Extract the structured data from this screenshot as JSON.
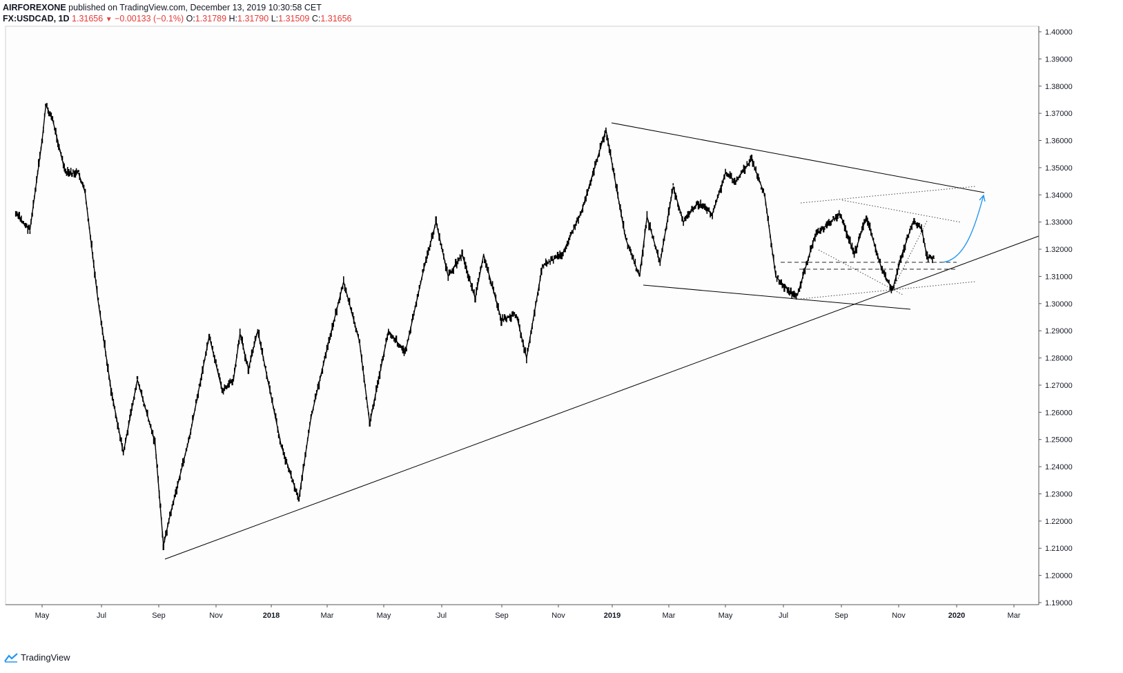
{
  "header": {
    "author": "AIRFOREXONE",
    "published": "published on TradingView.com, December 13, 2019 10:30:58 CET",
    "symbol": "FX:USDCAD, 1D",
    "last": "1.31656",
    "change": "−0.00133 (−0.1%)",
    "o_label": "O:",
    "o_value": "1.31789",
    "h_label": "H:",
    "h_value": "1.31790",
    "l_label": "L:",
    "l_value": "1.31509",
    "c_label": "C:",
    "c_value": "1.31656"
  },
  "footer": {
    "brand": "TradingView"
  },
  "colors": {
    "candle": "#000000",
    "projection": "#2196f3",
    "background": "#fdfdfd",
    "text_red": "#e53935"
  },
  "chart_data": {
    "type": "line",
    "title": "",
    "symbol": "USDCAD",
    "interval": "1D",
    "xlabel": "",
    "ylabel": "",
    "ylim": [
      1.19,
      1.4
    ],
    "y_axis_position": "right",
    "y_ticks": [
      "1.40000",
      "1.39000",
      "1.38000",
      "1.37000",
      "1.36000",
      "1.35000",
      "1.34000",
      "1.33000",
      "1.32000",
      "1.31000",
      "1.30000",
      "1.29000",
      "1.28000",
      "1.27000",
      "1.26000",
      "1.25000",
      "1.24000",
      "1.23000",
      "1.22000",
      "1.21000",
      "1.20000",
      "1.19000"
    ],
    "x_ticks": [
      {
        "label": "May",
        "year": false
      },
      {
        "label": "Jul",
        "year": false
      },
      {
        "label": "Sep",
        "year": false
      },
      {
        "label": "Nov",
        "year": false
      },
      {
        "label": "2018",
        "year": true
      },
      {
        "label": "Mar",
        "year": false
      },
      {
        "label": "May",
        "year": false
      },
      {
        "label": "Jul",
        "year": false
      },
      {
        "label": "Sep",
        "year": false
      },
      {
        "label": "Nov",
        "year": false
      },
      {
        "label": "2019",
        "year": true
      },
      {
        "label": "Mar",
        "year": false
      },
      {
        "label": "May",
        "year": false
      },
      {
        "label": "Jul",
        "year": false
      },
      {
        "label": "Sep",
        "year": false
      },
      {
        "label": "Nov",
        "year": false
      },
      {
        "label": "2020",
        "year": true
      },
      {
        "label": "Mar",
        "year": false
      }
    ],
    "series": [
      {
        "values": [
          {
            "x": "2017-04-03",
            "y": 1.333
          },
          {
            "x": "2017-04-18",
            "y": 1.327
          },
          {
            "x": "2017-05-01",
            "y": 1.36
          },
          {
            "x": "2017-05-05",
            "y": 1.373
          },
          {
            "x": "2017-05-12",
            "y": 1.368
          },
          {
            "x": "2017-05-26",
            "y": 1.348
          },
          {
            "x": "2017-06-09",
            "y": 1.348
          },
          {
            "x": "2017-06-16",
            "y": 1.341
          },
          {
            "x": "2017-06-30",
            "y": 1.301
          },
          {
            "x": "2017-07-14",
            "y": 1.268
          },
          {
            "x": "2017-07-27",
            "y": 1.245
          },
          {
            "x": "2017-08-11",
            "y": 1.272
          },
          {
            "x": "2017-08-30",
            "y": 1.249
          },
          {
            "x": "2017-09-08",
            "y": 1.211
          },
          {
            "x": "2017-09-15",
            "y": 1.222
          },
          {
            "x": "2017-10-06",
            "y": 1.251
          },
          {
            "x": "2017-10-27",
            "y": 1.288
          },
          {
            "x": "2017-11-10",
            "y": 1.268
          },
          {
            "x": "2017-11-22",
            "y": 1.272
          },
          {
            "x": "2017-11-29",
            "y": 1.289
          },
          {
            "x": "2017-12-08",
            "y": 1.276
          },
          {
            "x": "2017-12-18",
            "y": 1.29
          },
          {
            "x": "2018-01-12",
            "y": 1.248
          },
          {
            "x": "2018-01-31",
            "y": 1.228
          },
          {
            "x": "2018-02-13",
            "y": 1.258
          },
          {
            "x": "2018-03-02",
            "y": 1.283
          },
          {
            "x": "2018-03-20",
            "y": 1.308
          },
          {
            "x": "2018-04-06",
            "y": 1.286
          },
          {
            "x": "2018-04-17",
            "y": 1.256
          },
          {
            "x": "2018-05-07",
            "y": 1.29
          },
          {
            "x": "2018-05-25",
            "y": 1.282
          },
          {
            "x": "2018-06-14",
            "y": 1.313
          },
          {
            "x": "2018-06-27",
            "y": 1.33
          },
          {
            "x": "2018-07-10",
            "y": 1.31
          },
          {
            "x": "2018-07-25",
            "y": 1.318
          },
          {
            "x": "2018-08-08",
            "y": 1.302
          },
          {
            "x": "2018-08-17",
            "y": 1.318
          },
          {
            "x": "2018-09-05",
            "y": 1.294
          },
          {
            "x": "2018-09-21",
            "y": 1.296
          },
          {
            "x": "2018-10-02",
            "y": 1.28
          },
          {
            "x": "2018-10-19",
            "y": 1.314
          },
          {
            "x": "2018-11-09",
            "y": 1.318
          },
          {
            "x": "2018-11-30",
            "y": 1.334
          },
          {
            "x": "2018-12-26",
            "y": 1.364
          },
          {
            "x": "2019-01-16",
            "y": 1.324
          },
          {
            "x": "2019-01-31",
            "y": 1.31
          },
          {
            "x": "2019-02-08",
            "y": 1.332
          },
          {
            "x": "2019-02-22",
            "y": 1.315
          },
          {
            "x": "2019-03-08",
            "y": 1.343
          },
          {
            "x": "2019-03-19",
            "y": 1.33
          },
          {
            "x": "2019-04-03",
            "y": 1.337
          },
          {
            "x": "2019-04-19",
            "y": 1.333
          },
          {
            "x": "2019-05-03",
            "y": 1.348
          },
          {
            "x": "2019-05-14",
            "y": 1.345
          },
          {
            "x": "2019-05-31",
            "y": 1.353
          },
          {
            "x": "2019-06-14",
            "y": 1.34
          },
          {
            "x": "2019-06-26",
            "y": 1.31
          },
          {
            "x": "2019-07-12",
            "y": 1.304
          },
          {
            "x": "2019-07-19",
            "y": 1.303
          },
          {
            "x": "2019-08-07",
            "y": 1.325
          },
          {
            "x": "2019-08-23",
            "y": 1.33
          },
          {
            "x": "2019-09-03",
            "y": 1.333
          },
          {
            "x": "2019-09-18",
            "y": 1.318
          },
          {
            "x": "2019-10-01",
            "y": 1.332
          },
          {
            "x": "2019-10-18",
            "y": 1.312
          },
          {
            "x": "2019-10-29",
            "y": 1.305
          },
          {
            "x": "2019-11-08",
            "y": 1.318
          },
          {
            "x": "2019-11-20",
            "y": 1.33
          },
          {
            "x": "2019-11-29",
            "y": 1.328
          },
          {
            "x": "2019-12-05",
            "y": 1.317
          },
          {
            "x": "2019-12-13",
            "y": 1.3166
          }
        ]
      }
    ]
  }
}
